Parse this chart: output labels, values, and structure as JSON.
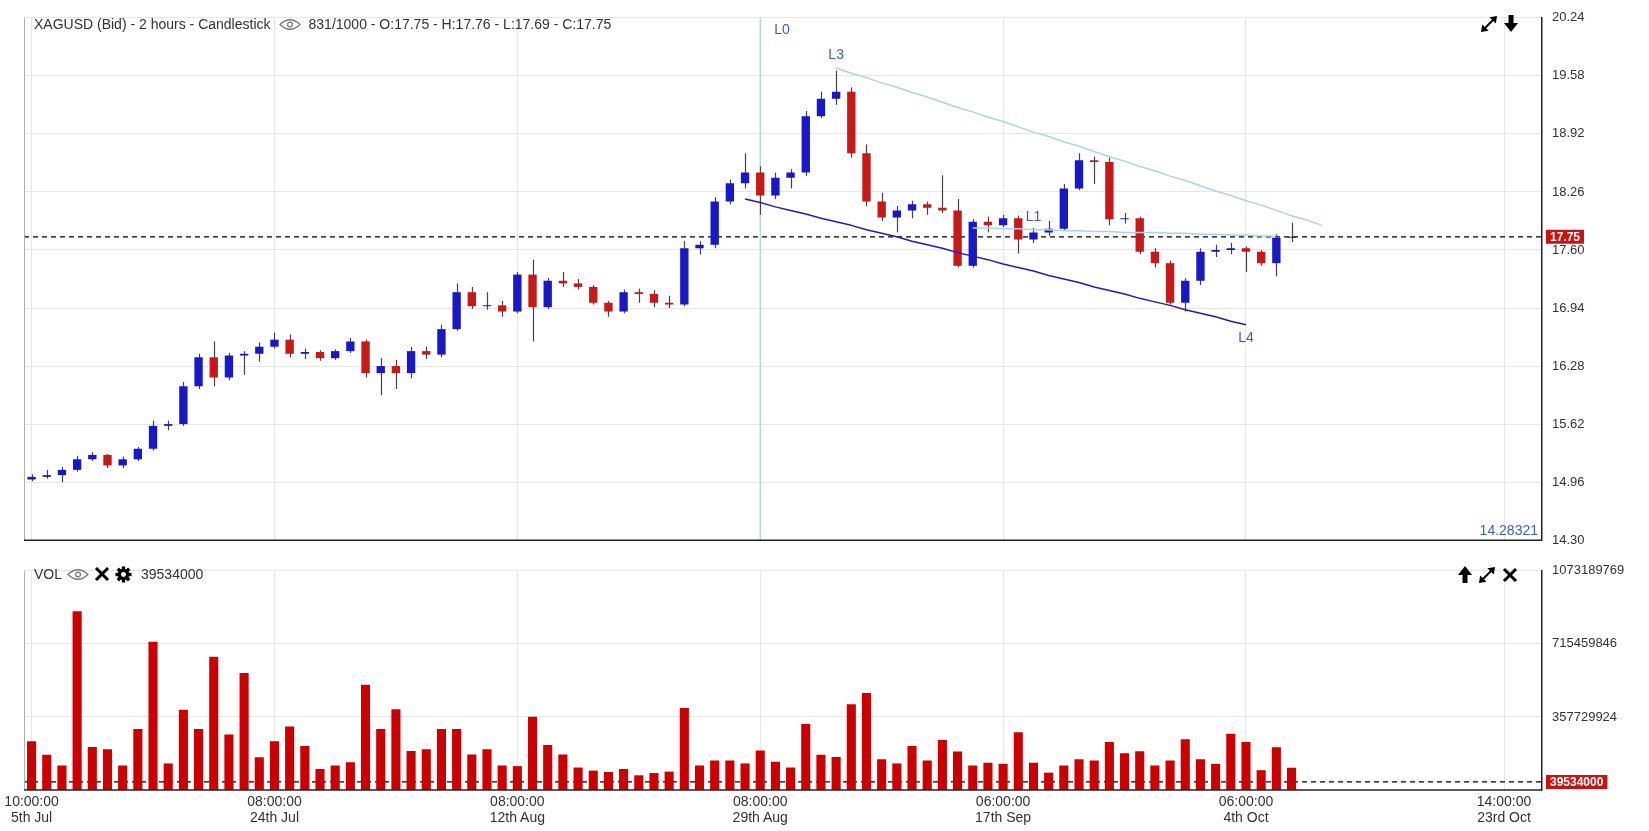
{
  "chart_data": [
    {
      "type": "candlestick",
      "title": "XAGUSD (Bid) - 2 hours - Candlestick",
      "subtitle": "831/1000 - O:17.75 - H:17.76 - L:17.69 - C:17.75",
      "categories": [
        "10:00:00\n5th Jul",
        null,
        null,
        null,
        null,
        null,
        null,
        null,
        null,
        null,
        null,
        null,
        null,
        null,
        null,
        null,
        "08:00:00\n24th Jul",
        null,
        null,
        null,
        null,
        null,
        null,
        null,
        null,
        null,
        null,
        null,
        null,
        null,
        null,
        null,
        "08:00:00\n12th Aug",
        null,
        null,
        null,
        null,
        null,
        null,
        null,
        null,
        null,
        null,
        null,
        null,
        null,
        null,
        null,
        "08:00:00\n29th Aug",
        null,
        null,
        null,
        null,
        null,
        null,
        null,
        null,
        null,
        null,
        null,
        null,
        null,
        null,
        null,
        "06:00:00\n17th Sep",
        null,
        null,
        null,
        null,
        null,
        null,
        null,
        null,
        null,
        null,
        null,
        null,
        null,
        null,
        null,
        "06:00:00\n4th Oct",
        null,
        null,
        null,
        null,
        null,
        null,
        null,
        null,
        null,
        null,
        null,
        null,
        null,
        null,
        null,
        null,
        "14:00:00\n23rd Oct",
        null,
        null
      ],
      "ohlc": [
        [
          14.99,
          15.05,
          14.97,
          15.02
        ],
        [
          15.02,
          15.1,
          15.0,
          15.04
        ],
        [
          15.04,
          15.13,
          14.96,
          15.1
        ],
        [
          15.1,
          15.26,
          15.08,
          15.22
        ],
        [
          15.22,
          15.3,
          15.2,
          15.27
        ],
        [
          15.27,
          15.28,
          15.12,
          15.15
        ],
        [
          15.15,
          15.25,
          15.12,
          15.22
        ],
        [
          15.22,
          15.36,
          15.2,
          15.34
        ],
        [
          15.34,
          15.66,
          15.32,
          15.6
        ],
        [
          15.6,
          15.66,
          15.55,
          15.62
        ],
        [
          15.62,
          16.1,
          15.6,
          16.05
        ],
        [
          16.05,
          16.42,
          16.02,
          16.38
        ],
        [
          16.38,
          16.56,
          16.05,
          16.15
        ],
        [
          16.15,
          16.43,
          16.12,
          16.4
        ],
        [
          16.4,
          16.45,
          16.18,
          16.42
        ],
        [
          16.42,
          16.55,
          16.33,
          16.5
        ],
        [
          16.5,
          16.66,
          16.48,
          16.58
        ],
        [
          16.58,
          16.64,
          16.38,
          16.42
        ],
        [
          16.42,
          16.48,
          16.36,
          16.44
        ],
        [
          16.44,
          16.46,
          16.34,
          16.37
        ],
        [
          16.37,
          16.47,
          16.35,
          16.45
        ],
        [
          16.45,
          16.6,
          16.43,
          16.56
        ],
        [
          16.56,
          16.58,
          16.15,
          16.2
        ],
        [
          16.2,
          16.37,
          15.95,
          16.28
        ],
        [
          16.28,
          16.35,
          16.02,
          16.2
        ],
        [
          16.2,
          16.5,
          16.14,
          16.45
        ],
        [
          16.45,
          16.5,
          16.36,
          16.41
        ],
        [
          16.41,
          16.75,
          16.38,
          16.7
        ],
        [
          16.7,
          17.22,
          16.68,
          17.12
        ],
        [
          17.12,
          17.18,
          16.93,
          16.96
        ],
        [
          16.96,
          17.12,
          16.92,
          16.97
        ],
        [
          16.97,
          17.02,
          16.84,
          16.9
        ],
        [
          16.9,
          17.35,
          16.88,
          17.32
        ],
        [
          17.32,
          17.49,
          16.56,
          16.95
        ],
        [
          16.95,
          17.28,
          16.93,
          17.25
        ],
        [
          17.25,
          17.35,
          17.18,
          17.22
        ],
        [
          17.22,
          17.27,
          17.15,
          17.18
        ],
        [
          17.18,
          17.2,
          16.98,
          17.0
        ],
        [
          17.0,
          17.02,
          16.84,
          16.9
        ],
        [
          16.9,
          17.15,
          16.88,
          17.12
        ],
        [
          17.12,
          17.16,
          17.0,
          17.1
        ],
        [
          17.1,
          17.14,
          16.95,
          17.0
        ],
        [
          17.0,
          17.08,
          16.94,
          16.98
        ],
        [
          16.98,
          17.7,
          16.96,
          17.62
        ],
        [
          17.62,
          17.7,
          17.55,
          17.66
        ],
        [
          17.66,
          18.2,
          17.62,
          18.15
        ],
        [
          18.15,
          18.4,
          18.12,
          18.36
        ],
        [
          18.36,
          18.7,
          18.3,
          18.48
        ],
        [
          18.48,
          18.55,
          18.0,
          18.22
        ],
        [
          18.22,
          18.48,
          18.18,
          18.42
        ],
        [
          18.42,
          18.52,
          18.3,
          18.48
        ],
        [
          18.48,
          19.18,
          18.44,
          19.12
        ],
        [
          19.12,
          19.4,
          19.1,
          19.32
        ],
        [
          19.32,
          19.64,
          19.25,
          19.4
        ],
        [
          19.4,
          19.45,
          18.65,
          18.7
        ],
        [
          18.7,
          18.8,
          18.1,
          18.15
        ],
        [
          18.15,
          18.25,
          17.93,
          17.97
        ],
        [
          17.97,
          18.1,
          17.8,
          18.05
        ],
        [
          18.05,
          18.16,
          17.96,
          18.12
        ],
        [
          18.12,
          18.15,
          18.0,
          18.08
        ],
        [
          18.08,
          18.45,
          18.02,
          18.05
        ],
        [
          18.05,
          18.18,
          17.4,
          17.42
        ],
        [
          17.42,
          17.95,
          17.4,
          17.92
        ],
        [
          17.92,
          17.98,
          17.8,
          17.88
        ],
        [
          17.88,
          18.0,
          17.86,
          17.96
        ],
        [
          17.96,
          17.99,
          17.56,
          17.72
        ],
        [
          17.72,
          17.85,
          17.68,
          17.8
        ],
        [
          17.8,
          17.93,
          17.76,
          17.84
        ],
        [
          17.84,
          18.35,
          17.82,
          18.3
        ],
        [
          18.3,
          18.7,
          18.28,
          18.62
        ],
        [
          18.62,
          18.66,
          18.35,
          18.6
        ],
        [
          18.6,
          18.65,
          17.88,
          17.95
        ],
        [
          17.95,
          18.02,
          17.9,
          17.96
        ],
        [
          17.96,
          17.98,
          17.55,
          17.58
        ],
        [
          17.58,
          17.62,
          17.4,
          17.45
        ],
        [
          17.45,
          17.48,
          16.98,
          17.0
        ],
        [
          17.0,
          17.28,
          16.9,
          17.25
        ],
        [
          17.25,
          17.62,
          17.2,
          17.58
        ],
        [
          17.58,
          17.66,
          17.52,
          17.6
        ],
        [
          17.6,
          17.68,
          17.55,
          17.62
        ],
        [
          17.62,
          17.64,
          17.35,
          17.58
        ],
        [
          17.58,
          17.6,
          17.42,
          17.45
        ],
        [
          17.45,
          17.78,
          17.3,
          17.74
        ],
        [
          17.74,
          17.91,
          17.69,
          17.75
        ],
        null,
        null,
        null,
        null,
        null,
        null,
        null,
        null,
        null,
        null,
        null,
        null,
        null,
        null,
        null,
        null
      ],
      "colors": [
        "#1818c8",
        "#1818c8",
        "#1818c8",
        "#1818c8",
        "#1818c8",
        "#c81818",
        "#1818c8",
        "#1818c8",
        "#1818c8",
        "#1818c8",
        "#1818c8",
        "#1818c8",
        "#c81818",
        "#1818c8",
        "#1818c8",
        "#1818c8",
        "#1818c8",
        "#c81818",
        "#1818c8",
        "#c81818",
        "#1818c8",
        "#1818c8",
        "#c81818",
        "#1818c8",
        "#c81818",
        "#1818c8",
        "#c81818",
        "#1818c8",
        "#1818c8",
        "#c81818",
        "#1818c8",
        "#c81818",
        "#1818c8",
        "#c81818",
        "#1818c8",
        "#c81818",
        "#c81818",
        "#c81818",
        "#c81818",
        "#1818c8",
        "#c81818",
        "#c81818",
        "#c81818",
        "#1818c8",
        "#1818c8",
        "#1818c8",
        "#1818c8",
        "#1818c8",
        "#c81818",
        "#1818c8",
        "#1818c8",
        "#1818c8",
        "#1818c8",
        "#1818c8",
        "#c81818",
        "#c81818",
        "#c81818",
        "#1818c8",
        "#1818c8",
        "#c81818",
        "#c81818",
        "#c81818",
        "#1818c8",
        "#c81818",
        "#1818c8",
        "#c81818",
        "#1818c8",
        "#1818c8",
        "#1818c8",
        "#1818c8",
        "#c81818",
        "#c81818",
        "#1818c8",
        "#c81818",
        "#c81818",
        "#c81818",
        "#1818c8",
        "#1818c8",
        "#1818c8",
        "#1818c8",
        "#c81818",
        "#c81818",
        "#1818c8",
        "#1818c8",
        null,
        null,
        null,
        null,
        null,
        null,
        null,
        null,
        null,
        null,
        null,
        null,
        null,
        null,
        null,
        null
      ],
      "series": [
        {
          "type": "line",
          "name": "L3",
          "color": "#a9d5e5",
          "values": [
            null,
            null,
            null,
            null,
            null,
            null,
            null,
            null,
            null,
            null,
            null,
            null,
            null,
            null,
            null,
            null,
            null,
            null,
            null,
            null,
            null,
            null,
            null,
            null,
            null,
            null,
            null,
            null,
            null,
            null,
            null,
            null,
            null,
            null,
            null,
            null,
            null,
            null,
            null,
            null,
            null,
            null,
            null,
            null,
            null,
            null,
            null,
            null,
            null,
            null,
            null,
            null,
            null,
            19.67,
            19.61,
            19.56,
            19.5,
            19.45,
            19.39,
            19.34,
            19.28,
            19.22,
            19.17,
            19.11,
            19.06,
            19.0,
            18.94,
            18.89,
            18.83,
            18.78,
            18.72,
            18.66,
            18.61,
            18.55,
            18.5,
            18.44,
            18.39,
            18.33,
            18.27,
            18.22,
            18.16,
            18.11,
            18.05,
            17.99,
            17.94,
            17.88,
            null,
            null,
            null,
            null,
            null,
            null,
            null,
            null,
            null,
            null,
            null,
            null,
            null,
            null
          ]
        },
        {
          "type": "line",
          "name": "L4",
          "color": "#1c1cc8",
          "values": [
            null,
            null,
            null,
            null,
            null,
            null,
            null,
            null,
            null,
            null,
            null,
            null,
            null,
            null,
            null,
            null,
            null,
            null,
            null,
            null,
            null,
            null,
            null,
            null,
            null,
            null,
            null,
            null,
            null,
            null,
            null,
            null,
            null,
            null,
            null,
            null,
            null,
            null,
            null,
            null,
            null,
            null,
            null,
            null,
            null,
            null,
            null,
            18.18,
            18.14,
            18.09,
            18.05,
            18.01,
            17.96,
            17.92,
            17.88,
            17.83,
            17.79,
            17.75,
            17.7,
            17.66,
            17.62,
            17.57,
            17.53,
            17.49,
            17.44,
            17.4,
            17.36,
            17.31,
            17.27,
            17.23,
            17.18,
            17.14,
            17.1,
            17.05,
            17.01,
            16.97,
            16.92,
            16.88,
            16.84,
            16.79,
            16.75,
            null,
            null,
            null,
            null,
            null,
            null,
            null,
            null,
            null,
            null,
            null,
            null,
            null,
            null,
            null,
            null,
            null,
            null,
            null
          ]
        },
        {
          "type": "line",
          "name": "L1",
          "color": "#a9d5e5",
          "values": [
            null,
            null,
            null,
            null,
            null,
            null,
            null,
            null,
            null,
            null,
            null,
            null,
            null,
            null,
            null,
            null,
            null,
            null,
            null,
            null,
            null,
            null,
            null,
            null,
            null,
            null,
            null,
            null,
            null,
            null,
            null,
            null,
            null,
            null,
            null,
            null,
            null,
            null,
            null,
            null,
            null,
            null,
            null,
            null,
            null,
            null,
            null,
            null,
            null,
            null,
            null,
            null,
            null,
            null,
            null,
            null,
            null,
            null,
            null,
            null,
            null,
            null,
            17.85,
            17.85,
            17.84,
            17.84,
            17.83,
            17.83,
            17.82,
            17.82,
            17.81,
            17.81,
            17.8,
            17.8,
            17.8,
            17.79,
            17.79,
            17.78,
            17.78,
            17.77,
            17.77,
            17.76,
            17.76,
            null,
            null,
            null,
            null,
            null,
            null,
            null,
            null,
            null,
            null,
            null,
            null,
            null,
            null,
            null,
            null,
            null
          ]
        }
      ],
      "ylim": [
        14.3,
        20.24
      ],
      "yticks": [
        20.24,
        19.58,
        18.92,
        18.26,
        {
          "value": 17.6,
          "label": "17.60"
        },
        16.94,
        16.28,
        15.62,
        14.96,
        {
          "value": 14.3,
          "label": "14.30"
        }
      ],
      "ref_lines": [
        {
          "axis": "x",
          "value": "08:00:00\n29th Aug",
          "label": "L0",
          "color": "#a9d5e5"
        },
        {
          "axis": "y",
          "value": 17.75,
          "label": "17.75",
          "color": "#000000",
          "line_style": "dashed"
        }
      ],
      "annotations": [
        "14.28321"
      ],
      "grid": true,
      "legend": false,
      "marker": "none",
      "tick_labels": "y"
    },
    {
      "type": "bar",
      "title": "VOL",
      "subtitle": "39534000",
      "categories": [
        "10:00:00\n5th Jul",
        null,
        null,
        null,
        null,
        null,
        null,
        null,
        null,
        null,
        null,
        null,
        null,
        null,
        null,
        null,
        "08:00:00\n24th Jul",
        null,
        null,
        null,
        null,
        null,
        null,
        null,
        null,
        null,
        null,
        null,
        null,
        null,
        null,
        null,
        "08:00:00\n12th Aug",
        null,
        null,
        null,
        null,
        null,
        null,
        null,
        null,
        null,
        null,
        null,
        null,
        null,
        null,
        null,
        "08:00:00\n29th Aug",
        null,
        null,
        null,
        null,
        null,
        null,
        null,
        null,
        null,
        null,
        null,
        null,
        null,
        null,
        null,
        "06:00:00\n17th Sep",
        null,
        null,
        null,
        null,
        null,
        null,
        null,
        null,
        null,
        null,
        null,
        null,
        null,
        null,
        null,
        "06:00:00\n4th Oct",
        null,
        null,
        null,
        null,
        null,
        null,
        null,
        null,
        null,
        null,
        null,
        null,
        null,
        null,
        null,
        null,
        "14:00:00\n23rd Oct",
        null,
        null
      ],
      "values": [
        239000000,
        172000000,
        120000000,
        875000000,
        210000000,
        200000000,
        120000000,
        299000000,
        726000000,
        130000000,
        393000000,
        299000000,
        652000000,
        272000000,
        573000000,
        160000000,
        239000000,
        311000000,
        215000000,
        103000000,
        120000000,
        136000000,
        515000000,
        299000000,
        395000000,
        191000000,
        199000000,
        299000000,
        299000000,
        174000000,
        199000000,
        120000000,
        117000000,
        359000000,
        220000000,
        174000000,
        110000000,
        95000000,
        88000000,
        103000000,
        72000000,
        83000000,
        90000000,
        402000000,
        120000000,
        144000000,
        144000000,
        130000000,
        194000000,
        138000000,
        110000000,
        323000000,
        172000000,
        162000000,
        420000000,
        475000000,
        150000000,
        130000000,
        216000000,
        145000000,
        245000000,
        188000000,
        120000000,
        133000000,
        128000000,
        283000000,
        133000000,
        85000000,
        120000000,
        150000000,
        145000000,
        235000000,
        180000000,
        190000000,
        120000000,
        144000000,
        248000000,
        150000000,
        128000000,
        276000000,
        235000000,
        97000000,
        209000000,
        109000000,
        null,
        null,
        null,
        null,
        null,
        null,
        null,
        null,
        null,
        null,
        null,
        null,
        null,
        null,
        null,
        null
      ],
      "color": "#cc0000",
      "ylim": [
        0,
        1073189769
      ],
      "yticks": [
        357729924,
        715459846,
        1073189769
      ],
      "ref_lines": [
        {
          "axis": "y",
          "value": 39534000,
          "label": "39534000",
          "color": "#000000",
          "line_style": "dashed"
        }
      ],
      "grid": true,
      "legend": false
    }
  ]
}
